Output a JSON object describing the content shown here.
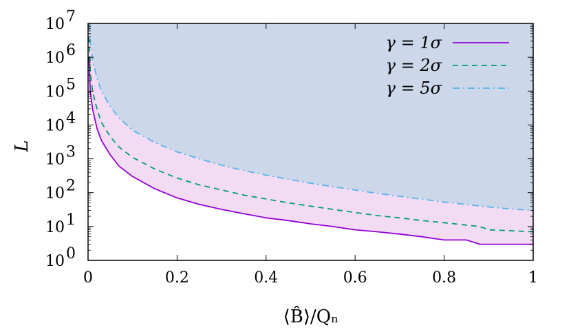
{
  "chart_data": {
    "type": "line",
    "xlabel": "⟨B̂⟩/Qₙ",
    "ylabel": "L",
    "xlim": [
      0,
      1
    ],
    "ylim": [
      1,
      10000000
    ],
    "yscale": "log",
    "grid": false,
    "legend_position": "top-right",
    "x_ticks": [
      {
        "value": 0,
        "label": "0"
      },
      {
        "value": 0.2,
        "label": "0.2"
      },
      {
        "value": 0.4,
        "label": "0.4"
      },
      {
        "value": 0.6,
        "label": "0.6"
      },
      {
        "value": 0.8,
        "label": "0.8"
      },
      {
        "value": 1,
        "label": "1"
      }
    ],
    "y_ticks": [
      {
        "value": 1,
        "mant": "10",
        "exp": "0"
      },
      {
        "value": 10,
        "mant": "10",
        "exp": "1"
      },
      {
        "value": 100,
        "mant": "10",
        "exp": "2"
      },
      {
        "value": 1000,
        "mant": "10",
        "exp": "3"
      },
      {
        "value": 10000,
        "mant": "10",
        "exp": "4"
      },
      {
        "value": 100000,
        "mant": "10",
        "exp": "5"
      },
      {
        "value": 1000000,
        "mant": "10",
        "exp": "6"
      },
      {
        "value": 10000000,
        "mant": "10",
        "exp": "7"
      }
    ],
    "fill_colors": {
      "sigma1_to_sigma5": "#f3dcf3",
      "above_sigma5": "#ccd7ea"
    },
    "series": [
      {
        "name": "γ = 1σ",
        "color": "#9400d3",
        "dash": "solid",
        "x": [
          0.002,
          0.005,
          0.01,
          0.02,
          0.03,
          0.05,
          0.07,
          0.1,
          0.15,
          0.2,
          0.25,
          0.3,
          0.35,
          0.4,
          0.45,
          0.5,
          0.55,
          0.6,
          0.65,
          0.7,
          0.75,
          0.8,
          0.85,
          0.88,
          0.9,
          0.95,
          1.0
        ],
        "y": [
          1000000,
          100000,
          30000,
          8000,
          3500,
          1300,
          600,
          300,
          130,
          70,
          45,
          32,
          24,
          18,
          15,
          12,
          10,
          8,
          7,
          6,
          5,
          4,
          4,
          3,
          3,
          3,
          3
        ]
      },
      {
        "name": "γ = 2σ",
        "color": "#009e73",
        "dash": "8,6",
        "x": [
          0.002,
          0.005,
          0.01,
          0.02,
          0.03,
          0.05,
          0.07,
          0.1,
          0.15,
          0.2,
          0.25,
          0.3,
          0.35,
          0.4,
          0.45,
          0.5,
          0.55,
          0.6,
          0.65,
          0.7,
          0.75,
          0.8,
          0.85,
          0.88,
          0.9,
          0.95,
          1.0
        ],
        "y": [
          4000000,
          400000,
          100000,
          30000,
          12000,
          4500,
          2200,
          1100,
          500,
          270,
          170,
          120,
          85,
          65,
          50,
          40,
          32,
          26,
          21,
          18,
          15,
          13,
          11,
          10,
          8,
          7.5,
          7
        ]
      },
      {
        "name": "γ = 5σ",
        "color": "#56b4e9",
        "dash": "10,5,2,5",
        "x": [
          0.002,
          0.005,
          0.01,
          0.02,
          0.03,
          0.05,
          0.07,
          0.1,
          0.15,
          0.2,
          0.25,
          0.3,
          0.35,
          0.4,
          0.45,
          0.5,
          0.55,
          0.6,
          0.65,
          0.7,
          0.75,
          0.8,
          0.85,
          0.9,
          0.95,
          1.0
        ],
        "y": [
          10000000,
          3000000,
          800000,
          250000,
          100000,
          35000,
          16000,
          7000,
          3000,
          1600,
          1000,
          650,
          450,
          330,
          250,
          190,
          150,
          120,
          95,
          78,
          64,
          53,
          45,
          38,
          33,
          30
        ]
      }
    ]
  }
}
